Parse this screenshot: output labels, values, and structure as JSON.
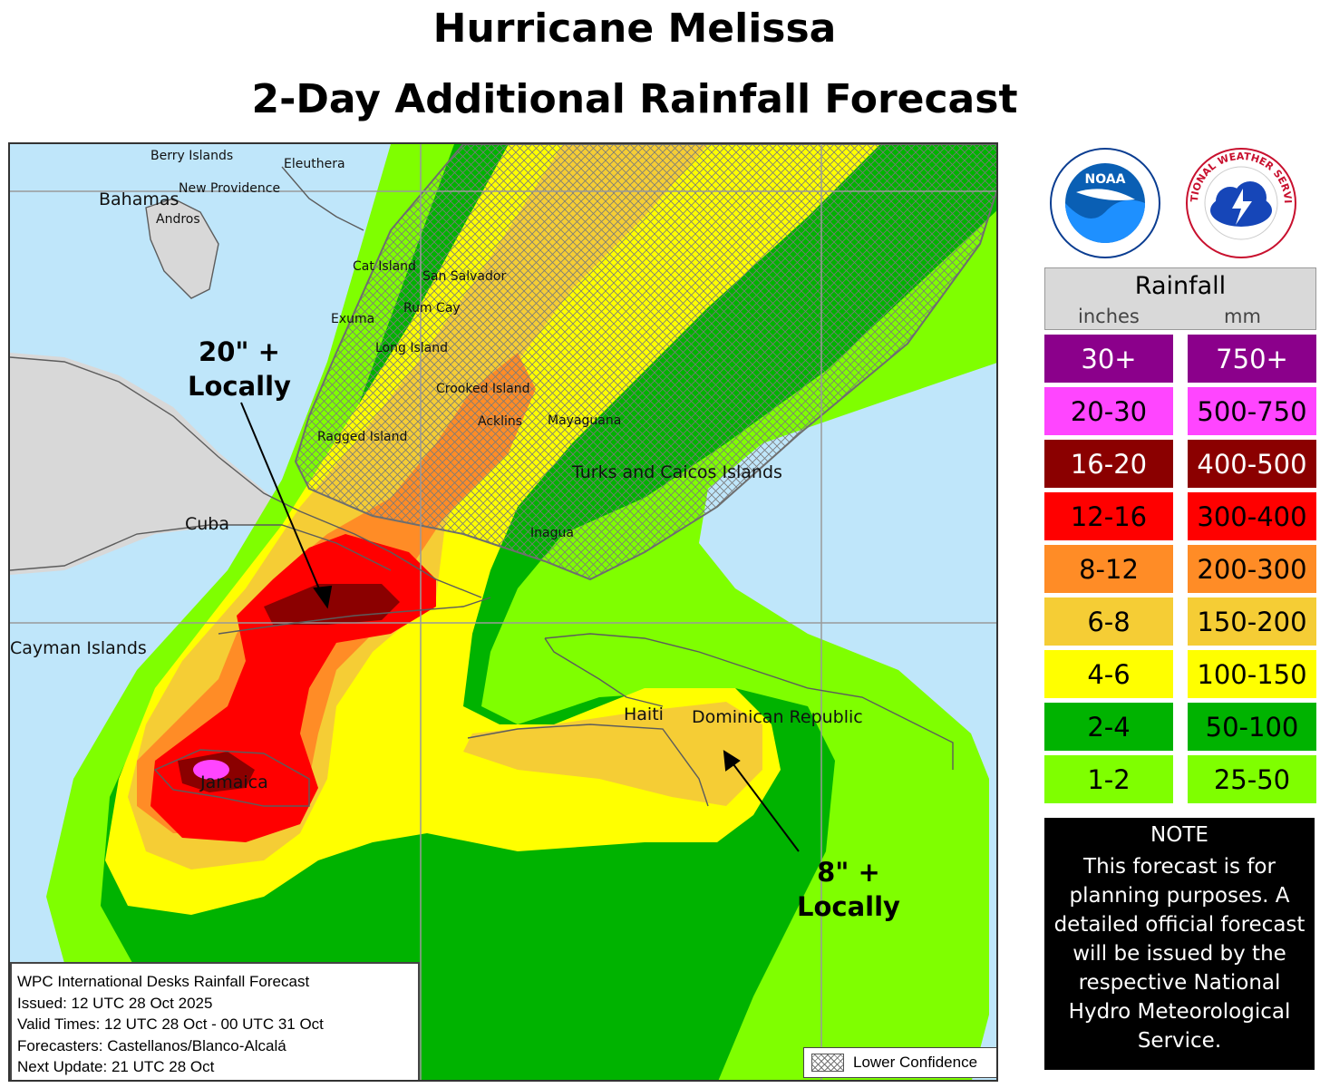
{
  "title": {
    "line1": "Hurricane Melissa",
    "line2": "2-Day Additional Rainfall Forecast"
  },
  "map": {
    "places": {
      "berry_islands": "Berry Islands",
      "eleuthera": "Eleuthera",
      "bahamas": "Bahamas",
      "new_providence": "New Providence",
      "andros": "Andros",
      "cat_island": "Cat Island",
      "san_salvador": "San Salvador",
      "exuma": "Exuma",
      "rum_cay": "Rum Cay",
      "long_island": "Long Island",
      "crooked_island": "Crooked Island",
      "acklins": "Acklins",
      "mayaguana": "Mayaguana",
      "ragged_island": "Ragged Island",
      "turks_caicos": "Turks and Caicos Islands",
      "cuba": "Cuba",
      "inagua": "Inagua",
      "cayman": "Cayman Islands",
      "haiti": "Haiti",
      "dominican_republic": "Dominican Republic",
      "jamaica": "Jamaica"
    },
    "callout_cuba": {
      "line1": "20\" +",
      "line2": "Locally"
    },
    "callout_dr": {
      "line1": "8\" +",
      "line2": "Locally"
    },
    "colors": {
      "ocean": "#bfe6fa",
      "land": "#d8d8d8",
      "r1_2": "#7fff00",
      "r2_4": "#00b300",
      "r4_6": "#ffff00",
      "r6_8": "#f5cd35",
      "r8_12": "#ff8c26",
      "r12_16": "#ff0000",
      "r16_20": "#8b0000",
      "r20_30": "#ff45ff",
      "r30p": "#8b008b"
    }
  },
  "info_box": {
    "line1": "WPC International Desks Rainfall Forecast",
    "line2": "Issued: 12 UTC 28 Oct 2025",
    "line3": "Valid Times: 12 UTC 28 Oct - 00 UTC 31 Oct",
    "line4": "Forecasters: Castellanos/Blanco-Alcalá",
    "line5": "Next Update: 21 UTC 28 Oct"
  },
  "lower_confidence_label": "Lower Confidence",
  "logos": {
    "noaa": "NOAA",
    "nws": "NATIONAL WEATHER SERVICE"
  },
  "legend": {
    "title": "Rainfall",
    "col_inches": "inches",
    "col_mm": "mm",
    "rows": [
      {
        "inches": "30+",
        "mm": "750+",
        "color": "#8b008b",
        "text": "#ffffff"
      },
      {
        "inches": "20-30",
        "mm": "500-750",
        "color": "#ff45ff",
        "text": "#000000"
      },
      {
        "inches": "16-20",
        "mm": "400-500",
        "color": "#8b0000",
        "text": "#ffffff"
      },
      {
        "inches": "12-16",
        "mm": "300-400",
        "color": "#ff0000",
        "text": "#000000"
      },
      {
        "inches": "8-12",
        "mm": "200-300",
        "color": "#ff8c26",
        "text": "#000000"
      },
      {
        "inches": "6-8",
        "mm": "150-200",
        "color": "#f5cd35",
        "text": "#000000"
      },
      {
        "inches": "4-6",
        "mm": "100-150",
        "color": "#ffff00",
        "text": "#000000"
      },
      {
        "inches": "2-4",
        "mm": "50-100",
        "color": "#00b300",
        "text": "#000000"
      },
      {
        "inches": "1-2",
        "mm": "25-50",
        "color": "#7fff00",
        "text": "#000000"
      }
    ]
  },
  "note": {
    "title": "NOTE",
    "body": "This forecast is for planning purposes. A detailed official forecast will be issued by the respective National Hydro Meteorological Service."
  }
}
